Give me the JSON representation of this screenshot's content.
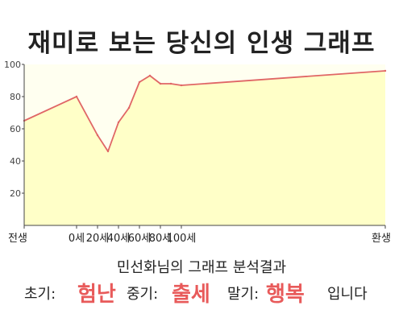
{
  "title": "재미로 보는 당신의 인생 그래프",
  "chart_data": {
    "type": "area",
    "title": "재미로 보는 당신의 인생 그래프",
    "x_tick_labels": [
      "전생",
      "0세",
      "20세",
      "40세",
      "60세",
      "80세",
      "100세",
      "환생"
    ],
    "y_ticks": [
      20,
      40,
      60,
      80,
      100
    ],
    "ylim": [
      0,
      100
    ],
    "grid": false,
    "series": [
      {
        "color": "#e06666",
        "fill": "#ffffc8",
        "points": [
          {
            "x": "전생",
            "y": 65
          },
          {
            "x": "0세",
            "y": 80
          },
          {
            "x": "20세",
            "y": 56
          },
          {
            "x": "30세",
            "y": 46
          },
          {
            "x": "40세",
            "y": 64
          },
          {
            "x": "50세",
            "y": 73
          },
          {
            "x": "60세",
            "y": 89
          },
          {
            "x": "70세",
            "y": 93
          },
          {
            "x": "80세",
            "y": 88
          },
          {
            "x": "90세",
            "y": 88
          },
          {
            "x": "100세",
            "y": 87
          },
          {
            "x": "환생",
            "y": 96
          }
        ]
      }
    ]
  },
  "summary": {
    "heading": "민선화님의 그래프 분석결과",
    "early_label": "초기:",
    "early_value": "험난",
    "middle_label": "중기:",
    "middle_value": "출세",
    "late_label": "말기:",
    "late_value": "행복",
    "ending": "입니다"
  },
  "colors": {
    "highlight": "#e85a5a",
    "line": "#e06666",
    "area_fill": "#ffffc8",
    "plot_bg": "#fffff0"
  }
}
